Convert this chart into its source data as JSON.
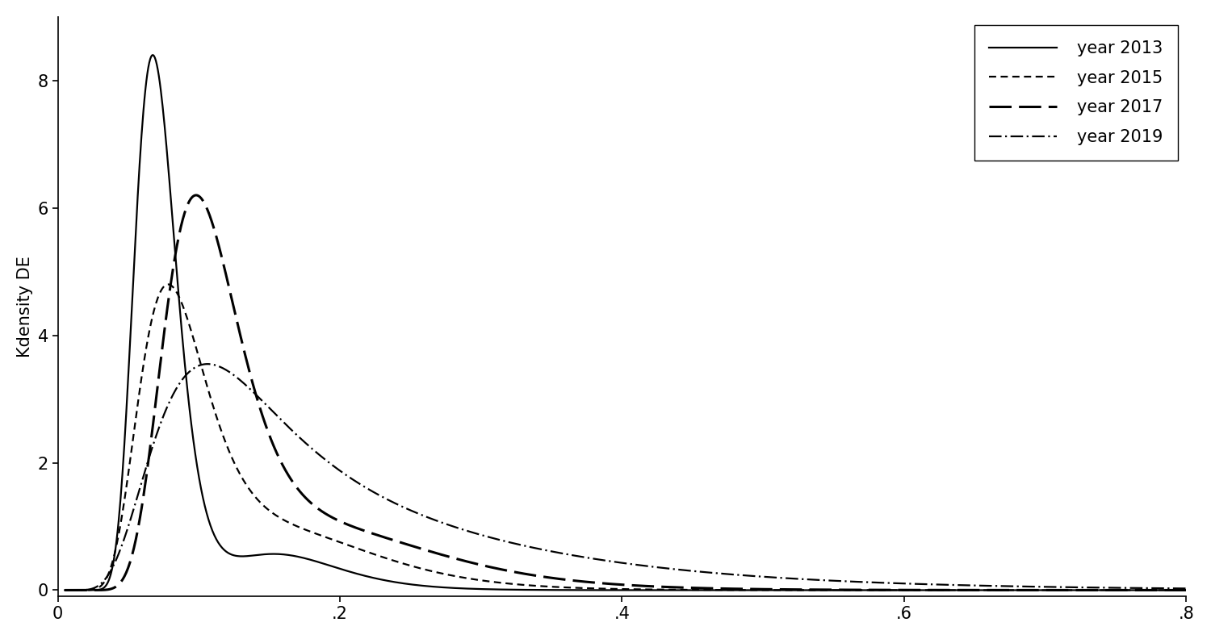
{
  "ylabel": "Kdensity DE",
  "xlim": [
    0,
    0.8
  ],
  "ylim": [
    -0.1,
    9.0
  ],
  "xticks": [
    0,
    0.2,
    0.4,
    0.6,
    0.8
  ],
  "xticklabels": [
    "0",
    ".2",
    ".4",
    ".6",
    ".8"
  ],
  "yticks": [
    0,
    2,
    4,
    6,
    8
  ],
  "yticklabels": [
    "0",
    "2",
    "4",
    "6",
    "8"
  ],
  "legend_loc": "upper right",
  "legend_fontsize": 15,
  "tick_fontsize": 15,
  "label_fontsize": 15,
  "figsize": [
    15.0,
    7.92
  ],
  "dpi": 100,
  "curves": [
    {
      "label": "year 2013",
      "linestyle": "solid",
      "linewidth": 1.6,
      "color": "black",
      "components": [
        {
          "weight": 0.85,
          "mean_log": -2.65,
          "sigma_log": 0.22
        },
        {
          "weight": 0.15,
          "mean_log": -1.8,
          "sigma_log": 0.25
        }
      ],
      "scale": 8.4
    },
    {
      "label": "year 2015",
      "linestyle": "dashed_short",
      "linewidth": 1.6,
      "color": "black",
      "components": [
        {
          "weight": 0.75,
          "mean_log": -2.45,
          "sigma_log": 0.32
        },
        {
          "weight": 0.25,
          "mean_log": -1.65,
          "sigma_log": 0.3
        }
      ],
      "scale": 4.8
    },
    {
      "label": "year 2017",
      "linestyle": "dashed_long",
      "linewidth": 2.2,
      "color": "black",
      "components": [
        {
          "weight": 0.75,
          "mean_log": -2.25,
          "sigma_log": 0.28
        },
        {
          "weight": 0.25,
          "mean_log": -1.5,
          "sigma_log": 0.32
        }
      ],
      "scale": 6.2
    },
    {
      "label": "year 2019",
      "linestyle": "dashdot",
      "linewidth": 1.6,
      "color": "black",
      "components": [
        {
          "weight": 0.6,
          "mean_log": -2.1,
          "sigma_log": 0.45
        },
        {
          "weight": 0.4,
          "mean_log": -1.3,
          "sigma_log": 0.5
        }
      ],
      "scale": 3.55
    }
  ]
}
